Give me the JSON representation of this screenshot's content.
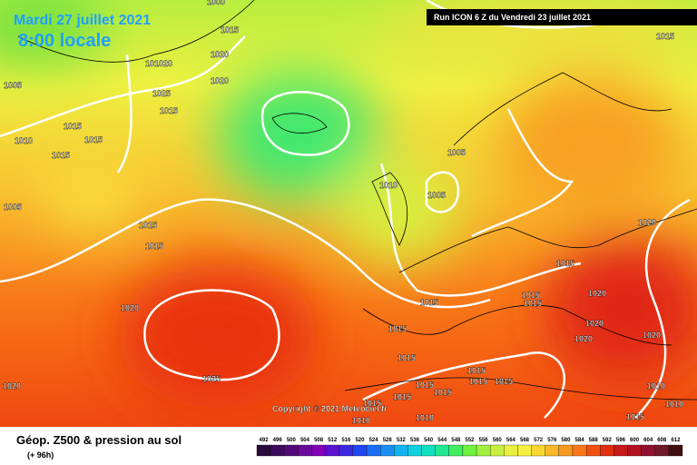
{
  "header": {
    "date": "Mardi 27 juillet 2021",
    "time": "8:00 locale",
    "run": "Run ICON 6 Z du Vendredi 23 juillet 2021"
  },
  "copyright": "Copyright © 2021 Meteociel.fr",
  "footer": {
    "title": "Géop. Z500 & pression au sol",
    "lead": "(+ 96h)"
  },
  "scale": {
    "labels": [
      "492",
      "496",
      "500",
      "504",
      "508",
      "512",
      "516",
      "520",
      "524",
      "528",
      "532",
      "536",
      "540",
      "544",
      "548",
      "552",
      "556",
      "560",
      "564",
      "568",
      "572",
      "576",
      "580",
      "584",
      "588",
      "592",
      "596",
      "600",
      "604",
      "608",
      "612"
    ],
    "colors": [
      "#2b0a3d",
      "#3d0a5c",
      "#520a7a",
      "#6a0a9a",
      "#8200b8",
      "#5a10d0",
      "#3a28e0",
      "#2046f0",
      "#1a6cf5",
      "#1a90f5",
      "#10b4f0",
      "#10d0e0",
      "#10e0c0",
      "#20e890",
      "#40ee60",
      "#70f040",
      "#a0f040",
      "#c8f040",
      "#e8f040",
      "#f8f040",
      "#f8d830",
      "#f8b828",
      "#f89820",
      "#f87818",
      "#f05010",
      "#e03010",
      "#c81818",
      "#b01020",
      "#901030",
      "#701828",
      "#401010"
    ]
  },
  "isobar_labels": [
    "1000",
    "1015",
    "1020",
    "1020",
    "101020",
    "1005",
    "1025",
    "1015",
    "1015",
    "1010",
    "1015",
    "1015",
    "1005",
    "1010",
    "1005",
    "1005",
    "1015",
    "1015",
    "1015",
    "1020",
    "1015",
    "1015",
    "1015",
    "1020",
    "1020",
    "1015",
    "1020",
    "1020",
    "1020",
    "1015",
    "1025",
    "1015",
    "1015",
    "1015",
    "1015",
    "1010",
    "1015",
    "1020",
    "1015",
    "1015",
    "1010",
    "1015",
    "1010",
    "1010",
    "1015"
  ]
}
